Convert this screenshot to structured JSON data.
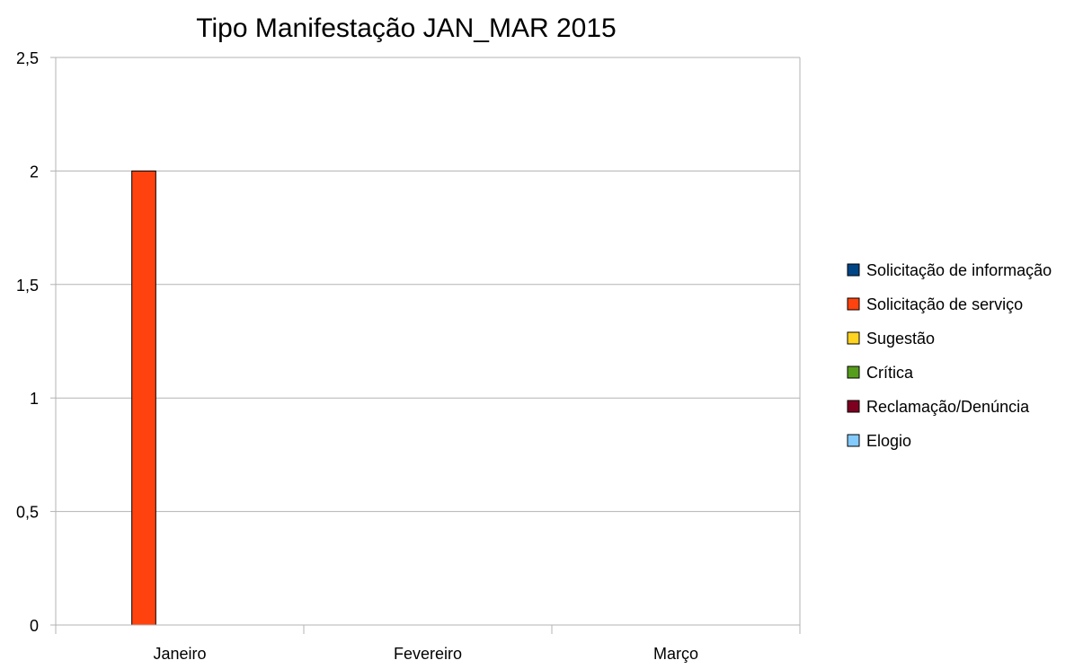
{
  "chart_data": {
    "type": "bar",
    "title": "Tipo Manifestação JAN_MAR 2015",
    "xlabel": "",
    "ylabel": "",
    "categories": [
      "Janeiro",
      "Fevereiro",
      "Março"
    ],
    "ylim": [
      0,
      2.5
    ],
    "yticks": [
      0,
      0.5,
      1,
      1.5,
      2,
      2.5
    ],
    "ytick_labels": [
      "0",
      "0,5",
      "1",
      "1,5",
      "2",
      "2,5"
    ],
    "grid": true,
    "legend_position": "right",
    "series": [
      {
        "name": "Solicitação de informação",
        "color": "#004586",
        "values": [
          0,
          0,
          0
        ]
      },
      {
        "name": "Solicitação de serviço",
        "color": "#ff420e",
        "values": [
          2,
          0,
          0
        ]
      },
      {
        "name": "Sugestão",
        "color": "#ffd320",
        "values": [
          0,
          0,
          0
        ]
      },
      {
        "name": "Crítica",
        "color": "#579d1c",
        "values": [
          0,
          0,
          0
        ]
      },
      {
        "name": "Reclamação/Denúncia",
        "color": "#7e0021",
        "values": [
          0,
          0,
          0
        ]
      },
      {
        "name": "Elogio",
        "color": "#83caff",
        "values": [
          0,
          0,
          0
        ]
      }
    ]
  }
}
